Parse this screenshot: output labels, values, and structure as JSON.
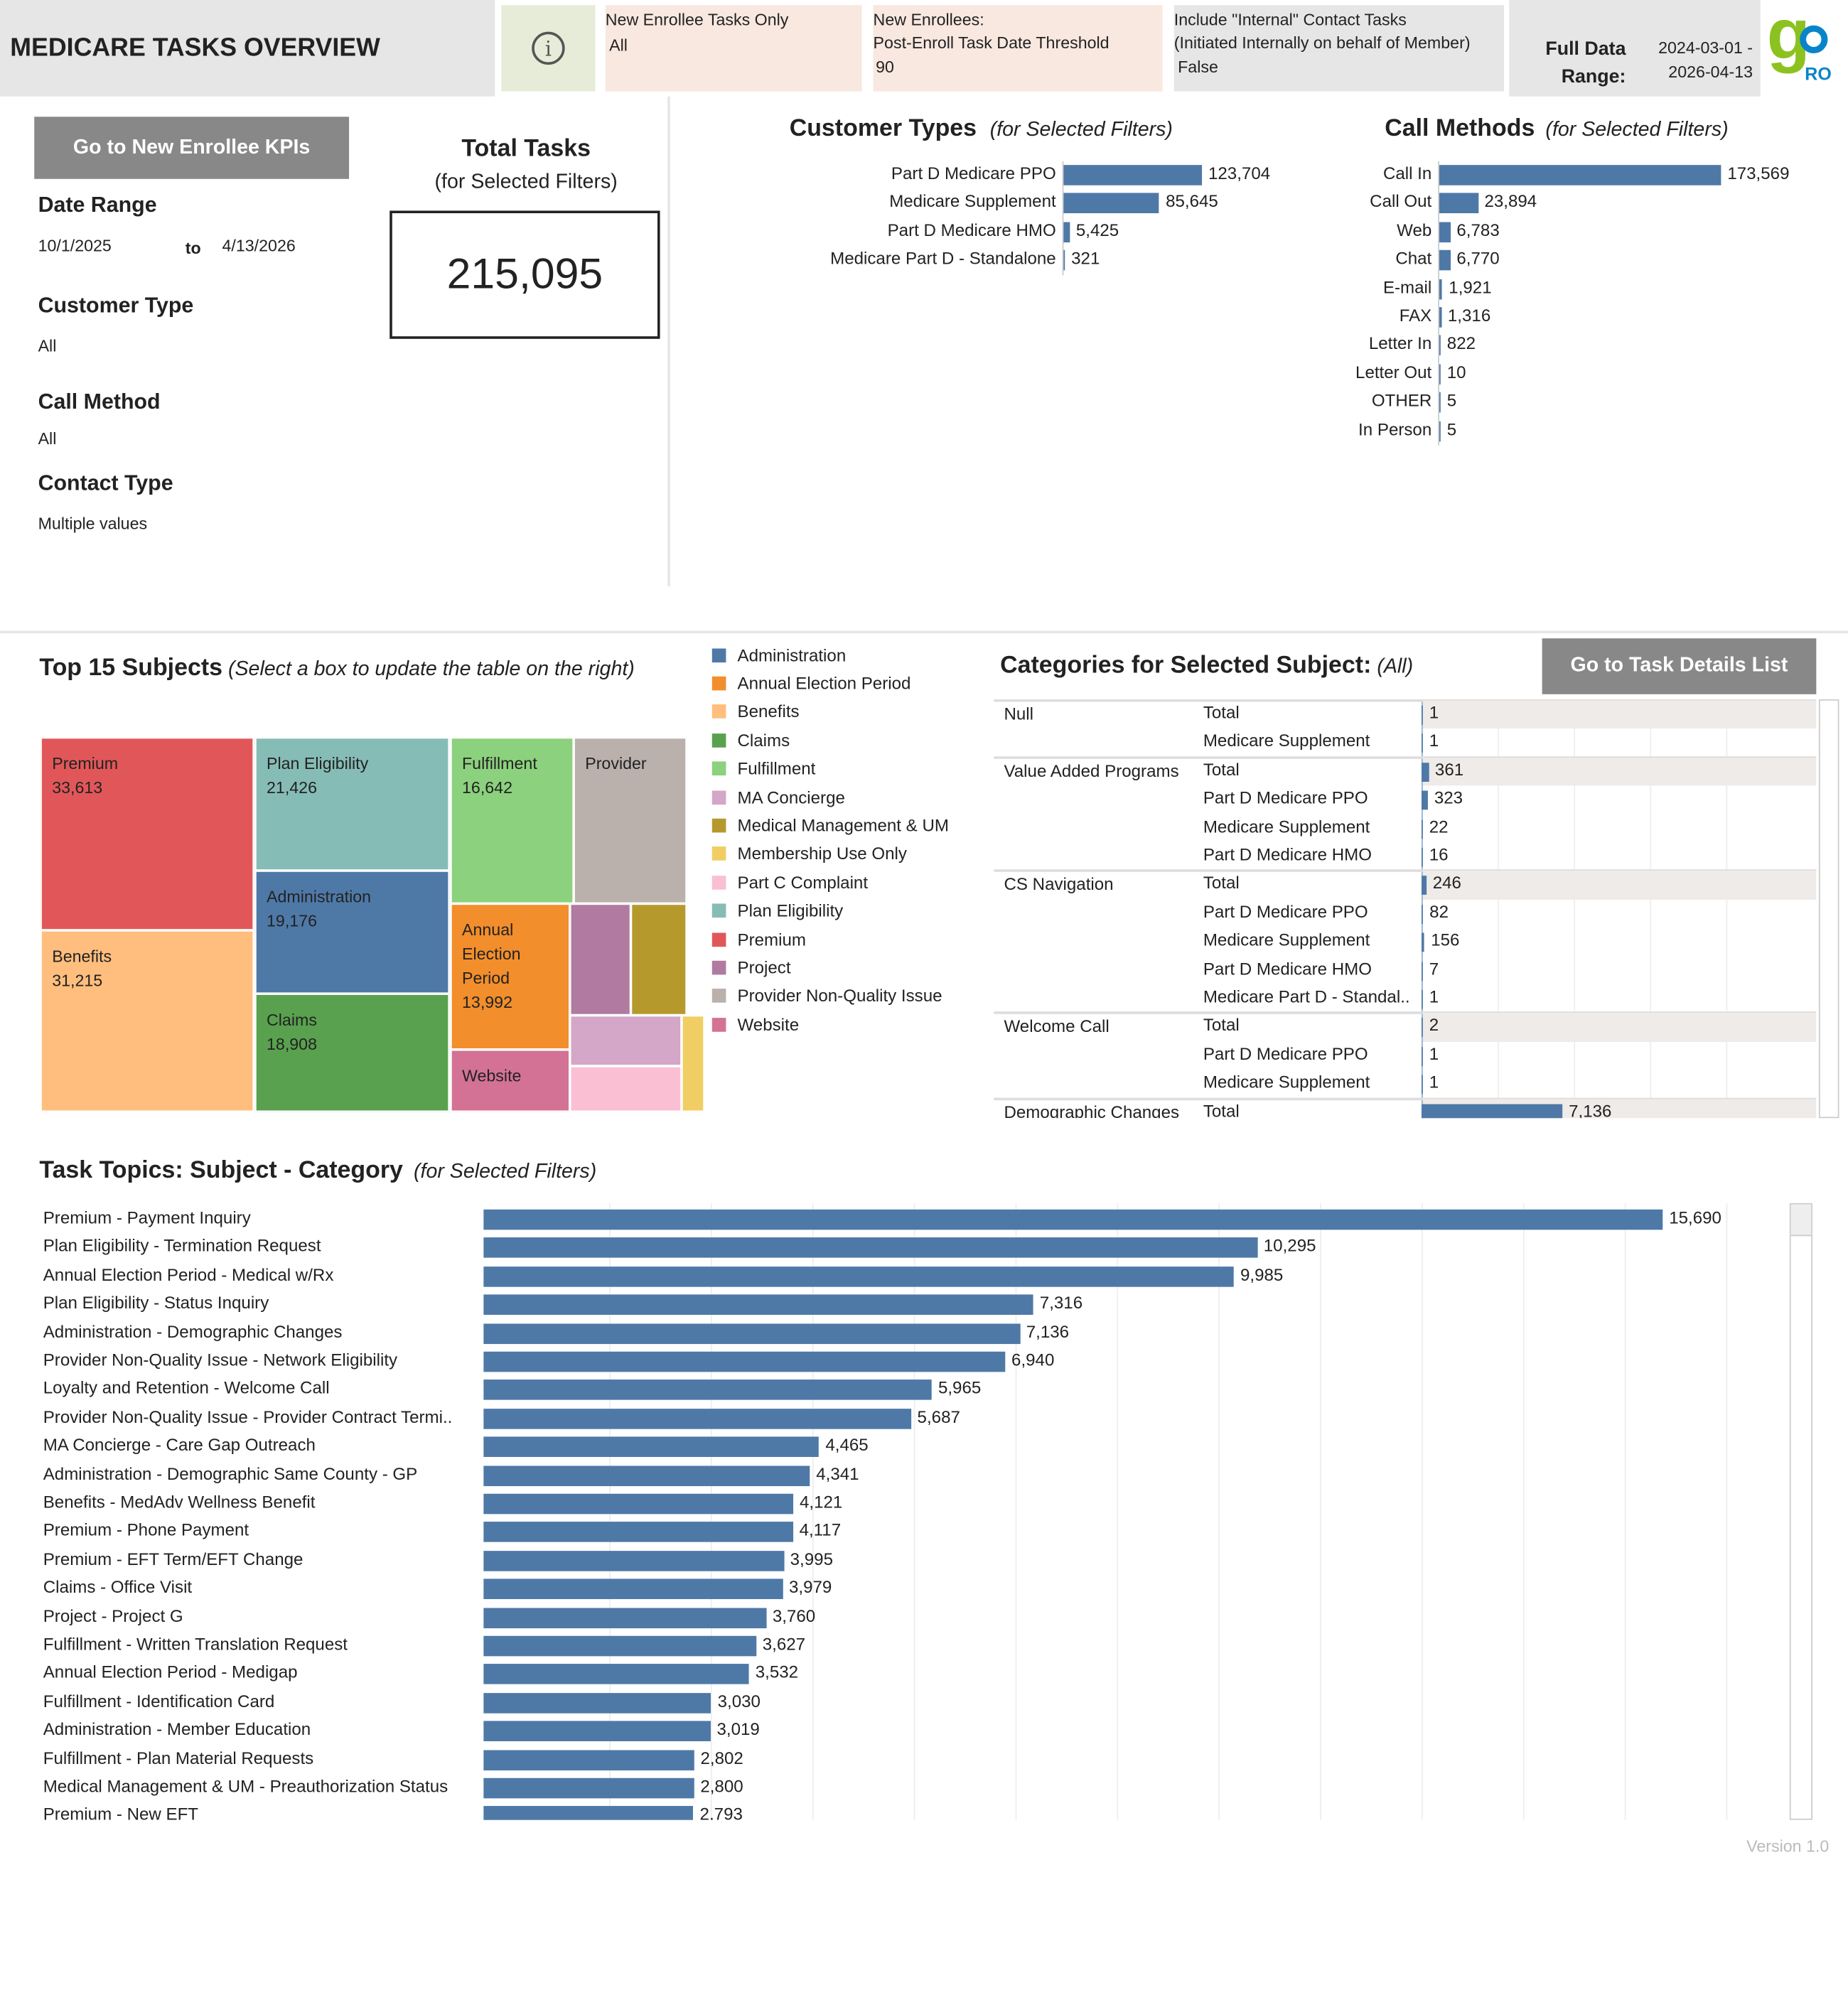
{
  "header": {
    "title": "MEDICARE TASKS OVERVIEW",
    "info_icon": "info-circle-icon",
    "filters": [
      {
        "label": "New Enrollee Tasks Only",
        "value": "All"
      },
      {
        "label": "New Enrollees:",
        "label2": "Post-Enroll Task Date Threshold",
        "value": "90"
      },
      {
        "label": "Include \"Internal\" Contact Tasks",
        "label2": "(Initiated Internally on behalf of Member)",
        "value": "False"
      }
    ],
    "full_data_label": "Full Data Range:",
    "full_data_value": "2024-03-01 - 2026-04-13",
    "logo_text": "goPRO"
  },
  "left": {
    "kpi_button": "Go to New Enrollee KPIs",
    "date_range_label": "Date Range",
    "date_from": "10/1/2025",
    "date_to_label": "to",
    "date_to": "4/13/2026",
    "customer_type_label": "Customer Type",
    "customer_type_value": "All",
    "call_method_label": "Call Method",
    "call_method_value": "All",
    "contact_type_label": "Contact Type",
    "contact_type_value": "Multiple values"
  },
  "total": {
    "title": "Total Tasks",
    "subtitle": "(for Selected Filters)",
    "value": "215,095"
  },
  "customer_types": {
    "title": "Customer Types",
    "subtitle": "(for Selected Filters)",
    "rows": [
      {
        "label": "Part D Medicare PPO",
        "value": 123704,
        "text": "123,704"
      },
      {
        "label": "Medicare Supplement",
        "value": 85645,
        "text": "85,645"
      },
      {
        "label": "Part D Medicare HMO",
        "value": 5425,
        "text": "5,425"
      },
      {
        "label": "Medicare Part D - Standalone",
        "value": 321,
        "text": "321"
      }
    ]
  },
  "call_methods": {
    "title": "Call Methods",
    "subtitle": "(for Selected Filters)",
    "rows": [
      {
        "label": "Call In",
        "value": 173569,
        "text": "173,569"
      },
      {
        "label": "Call Out",
        "value": 23894,
        "text": "23,894"
      },
      {
        "label": "Web",
        "value": 6783,
        "text": "6,783"
      },
      {
        "label": "Chat",
        "value": 6770,
        "text": "6,770"
      },
      {
        "label": "E-mail",
        "value": 1921,
        "text": "1,921"
      },
      {
        "label": "FAX",
        "value": 1316,
        "text": "1,316"
      },
      {
        "label": "Letter In",
        "value": 822,
        "text": "822"
      },
      {
        "label": "Letter Out",
        "value": 10,
        "text": "10"
      },
      {
        "label": "OTHER",
        "value": 5,
        "text": "5"
      },
      {
        "label": "In Person",
        "value": 5,
        "text": "5"
      }
    ]
  },
  "subjects": {
    "title": "Top 15 Subjects",
    "subtitle": "(Select a box to update the table on the right)",
    "boxes": [
      {
        "name": "Premium",
        "value": "33,613"
      },
      {
        "name": "Benefits",
        "value": "31,215"
      },
      {
        "name": "Plan Eligibility",
        "value": "21,426"
      },
      {
        "name": "Administration",
        "value": "19,176"
      },
      {
        "name": "Claims",
        "value": "18,908"
      },
      {
        "name": "Fulfillment",
        "value": "16,642"
      },
      {
        "name": "Provider",
        "value": ""
      },
      {
        "name": "Annual Election Period",
        "value": "13,992"
      },
      {
        "name": "Website",
        "value": ""
      }
    ],
    "legend": [
      {
        "label": "Administration",
        "color": "#4e79a7"
      },
      {
        "label": "Annual Election Period",
        "color": "#f28e2b"
      },
      {
        "label": "Benefits",
        "color": "#ffbe7d"
      },
      {
        "label": "Claims",
        "color": "#59a14f"
      },
      {
        "label": "Fulfillment",
        "color": "#8cd17d"
      },
      {
        "label": "MA Concierge",
        "color": "#d4a6c8"
      },
      {
        "label": "Medical Management & UM",
        "color": "#b6992d"
      },
      {
        "label": "Membership Use Only",
        "color": "#f1ce63"
      },
      {
        "label": "Part C Complaint",
        "color": "#fabfd2"
      },
      {
        "label": "Plan Eligibility",
        "color": "#86bcb6"
      },
      {
        "label": "Premium",
        "color": "#e15759"
      },
      {
        "label": "Project",
        "color": "#b07aa1"
      },
      {
        "label": "Provider Non-Quality Issue",
        "color": "#bab0ac"
      },
      {
        "label": "Website",
        "color": "#d37295"
      }
    ]
  },
  "categories": {
    "title": "Categories for Selected Subject:",
    "selected": "(All)",
    "button": "Go to Task Details List",
    "groups": [
      {
        "name": "Null",
        "rows": [
          {
            "type": "Total",
            "value": 1
          },
          {
            "type": "Medicare Supplement",
            "value": 1
          }
        ]
      },
      {
        "name": "Value Added Programs",
        "rows": [
          {
            "type": "Total",
            "value": 361
          },
          {
            "type": "Part D Medicare PPO",
            "value": 323
          },
          {
            "type": "Medicare Supplement",
            "value": 22
          },
          {
            "type": "Part D Medicare HMO",
            "value": 16
          }
        ]
      },
      {
        "name": "CS Navigation",
        "rows": [
          {
            "type": "Total",
            "value": 246
          },
          {
            "type": "Part D Medicare PPO",
            "value": 82
          },
          {
            "type": "Medicare Supplement",
            "value": 156
          },
          {
            "type": "Part D Medicare HMO",
            "value": 7
          },
          {
            "type": "Medicare Part D - Standal..",
            "value": 1
          }
        ]
      },
      {
        "name": "Welcome Call",
        "rows": [
          {
            "type": "Total",
            "value": 2
          },
          {
            "type": "Part D Medicare PPO",
            "value": 1
          },
          {
            "type": "Medicare Supplement",
            "value": 1
          }
        ]
      },
      {
        "name": "Demographic Changes",
        "rows": [
          {
            "type": "Total",
            "value": 7136,
            "text": "7,136"
          }
        ]
      }
    ]
  },
  "topics": {
    "title": "Task Topics: Subject - Category",
    "subtitle": "(for Selected Filters)",
    "rows": [
      {
        "label": "Premium - Payment Inquiry",
        "value": 15690
      },
      {
        "label": "Plan Eligibility - Termination Request",
        "value": 10295
      },
      {
        "label": "Annual Election Period - Medical w/Rx",
        "value": 9985
      },
      {
        "label": "Plan Eligibility - Status Inquiry",
        "value": 7316
      },
      {
        "label": "Administration - Demographic Changes",
        "value": 7136
      },
      {
        "label": "Provider Non-Quality Issue - Network Eligibility",
        "value": 6940
      },
      {
        "label": "Loyalty and Retention - Welcome Call",
        "value": 5965
      },
      {
        "label": "Provider Non-Quality Issue - Provider Contract Termi..",
        "value": 5687
      },
      {
        "label": "MA Concierge - Care Gap Outreach",
        "value": 4465
      },
      {
        "label": "Administration - Demographic Same County - GP",
        "value": 4341
      },
      {
        "label": "Benefits - MedAdv Wellness Benefit",
        "value": 4121
      },
      {
        "label": "Premium - Phone Payment",
        "value": 4117
      },
      {
        "label": "Premium - EFT Term/EFT Change",
        "value": 3995
      },
      {
        "label": "Claims - Office Visit",
        "value": 3979
      },
      {
        "label": "Project - Project G",
        "value": 3760
      },
      {
        "label": "Fulfillment - Written Translation Request",
        "value": 3627
      },
      {
        "label": "Annual Election Period - Medigap",
        "value": 3532
      },
      {
        "label": "Fulfillment - Identification Card",
        "value": 3030
      },
      {
        "label": "Administration - Member Education",
        "value": 3019
      },
      {
        "label": "Fulfillment - Plan Material Requests",
        "value": 2802
      },
      {
        "label": "Medical Management & UM - Preauthorization Status",
        "value": 2800
      },
      {
        "label": "Premium - New EFT",
        "value": 2793
      }
    ]
  },
  "footer": {
    "version": "Version 1.0"
  }
}
